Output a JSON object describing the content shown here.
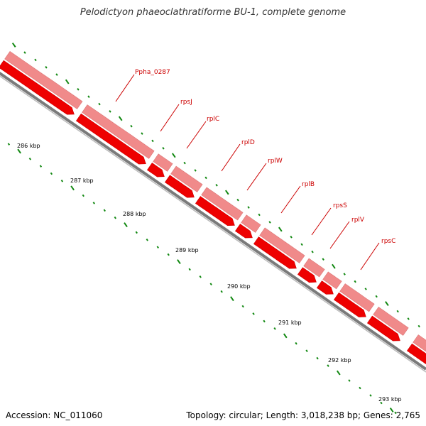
{
  "title": "Pelodictyon phaeoclathratiforme BU-1, complete genome",
  "footer": {
    "accession": "Accession: NC_011060",
    "topology": "Topology: circular; Length: 3,018,238 bp; Genes: 2,765"
  },
  "colors": {
    "gene_forward": "#f08a8a",
    "gene_reverse": "#ee0000",
    "backbone": "#888888",
    "ticks": "#118811",
    "label": "#cc0000"
  },
  "kbp_labels": [
    "286 kbp",
    "287 kbp",
    "288 kbp",
    "289 kbp",
    "290 kbp",
    "291 kbp",
    "292 kbp",
    "293 kbp"
  ],
  "gene_labels": [
    "Ppha_0287",
    "rpsJ",
    "rplC",
    "rplD",
    "rplW",
    "rplB",
    "rpsS",
    "rplV",
    "rpsC"
  ]
}
